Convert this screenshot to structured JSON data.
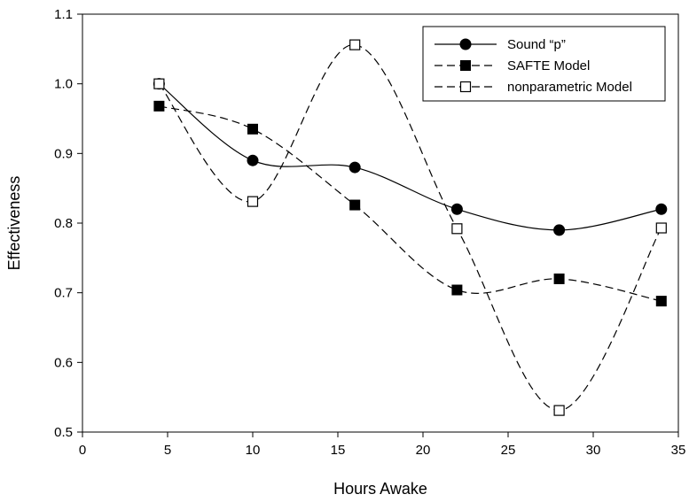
{
  "chart_data": {
    "type": "line",
    "title": "",
    "xlabel": "Hours Awake",
    "ylabel": "Effectiveness",
    "xlim": [
      0,
      35
    ],
    "ylim": [
      0.5,
      1.1
    ],
    "xticks": [
      0,
      5,
      10,
      15,
      20,
      25,
      30,
      35
    ],
    "yticks": [
      0.5,
      0.6,
      0.7,
      0.8,
      0.9,
      1.0,
      1.1
    ],
    "xtick_labels": [
      "0",
      "5",
      "10",
      "15",
      "20",
      "25",
      "30",
      "35"
    ],
    "ytick_labels": [
      "0.5",
      "0.6",
      "0.7",
      "0.8",
      "0.9",
      "1.0",
      "1.1"
    ],
    "grid": false,
    "legend_position": "top-right",
    "series": [
      {
        "name": "Sound “p”",
        "line_style": "solid",
        "marker": "filled-circle",
        "x": [
          4.5,
          10,
          16,
          22,
          28,
          34
        ],
        "y": [
          1.0,
          0.89,
          0.88,
          0.82,
          0.79,
          0.82
        ]
      },
      {
        "name": "SAFTE Model",
        "line_style": "dashed",
        "marker": "filled-square",
        "x": [
          4.5,
          10,
          16,
          22,
          28,
          34
        ],
        "y": [
          0.968,
          0.935,
          0.826,
          0.704,
          0.72,
          0.688
        ]
      },
      {
        "name": "nonparametric Model",
        "line_style": "dashed",
        "marker": "open-square",
        "x": [
          4.5,
          10,
          16,
          22,
          28,
          34
        ],
        "y": [
          1.0,
          0.831,
          1.056,
          0.792,
          0.531,
          0.793
        ]
      }
    ],
    "colors": {
      "line": "#000000",
      "background": "#ffffff"
    }
  }
}
